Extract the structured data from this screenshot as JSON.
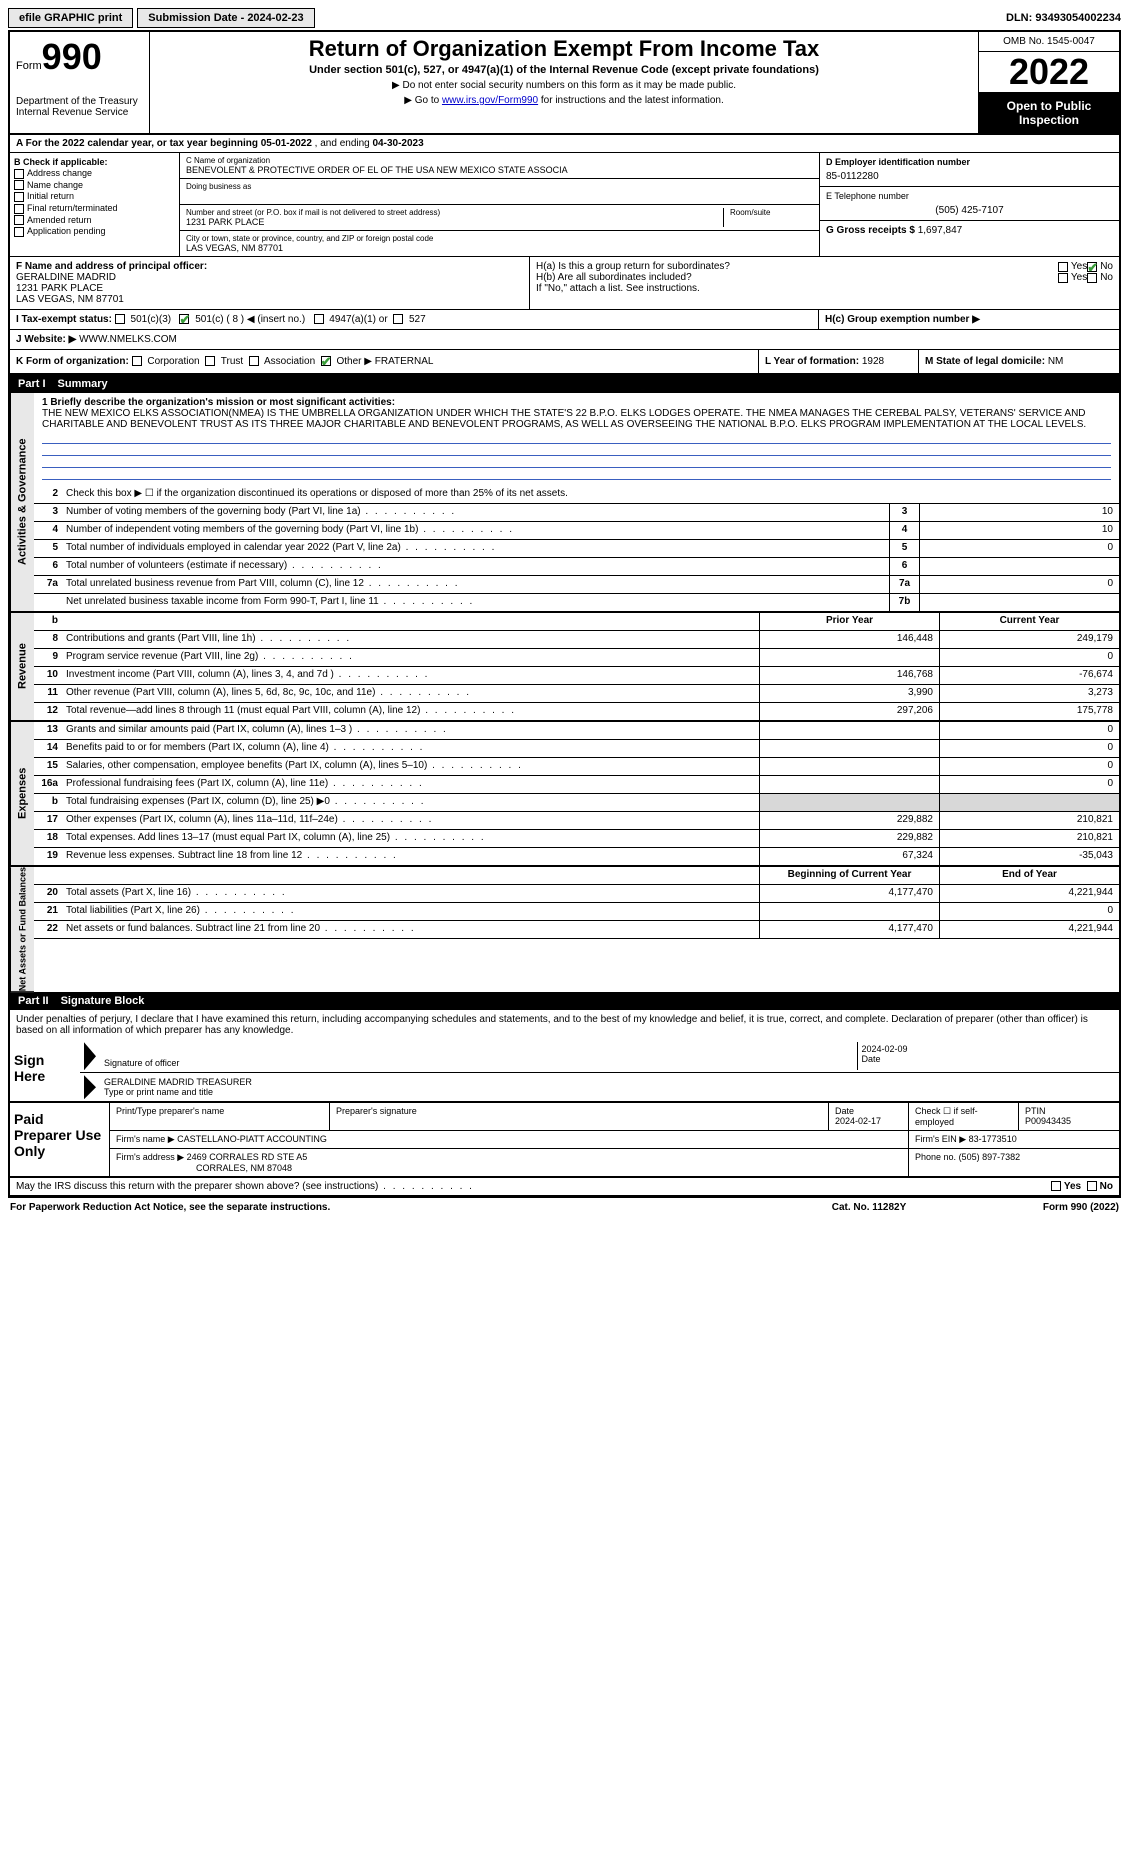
{
  "topbar": {
    "efile": "efile GRAPHIC print",
    "submission": "Submission Date - 2024-02-23",
    "dln": "DLN: 93493054002234"
  },
  "header": {
    "form_label": "Form",
    "form_num": "990",
    "dept": "Department of the Treasury",
    "irs": "Internal Revenue Service",
    "title": "Return of Organization Exempt From Income Tax",
    "subtitle": "Under section 501(c), 527, or 4947(a)(1) of the Internal Revenue Code (except private foundations)",
    "note1": "▶ Do not enter social security numbers on this form as it may be made public.",
    "note2_pre": "▶ Go to ",
    "note2_link": "www.irs.gov/Form990",
    "note2_post": " for instructions and the latest information.",
    "omb": "OMB No. 1545-0047",
    "year": "2022",
    "open": "Open to Public Inspection"
  },
  "rowA": {
    "text_pre": "A For the 2022 calendar year, or tax year beginning ",
    "begin": "05-01-2022",
    "mid": " , and ending ",
    "end": "04-30-2023"
  },
  "colB": {
    "hdr": "B Check if applicable:",
    "items": [
      "Address change",
      "Name change",
      "Initial return",
      "Final return/terminated",
      "Amended return",
      "Application pending"
    ]
  },
  "colC": {
    "name_hdr": "C Name of organization",
    "name": "BENEVOLENT & PROTECTIVE ORDER OF EL OF THE USA NEW MEXICO STATE ASSOCIA",
    "dba_hdr": "Doing business as",
    "addr_hdr": "Number and street (or P.O. box if mail is not delivered to street address)",
    "addr": "1231 PARK PLACE",
    "room_hdr": "Room/suite",
    "city_hdr": "City or town, state or province, country, and ZIP or foreign postal code",
    "city": "LAS VEGAS, NM  87701"
  },
  "colD": {
    "ein_hdr": "D Employer identification number",
    "ein": "85-0112280",
    "tel_hdr": "E Telephone number",
    "tel": "(505) 425-7107",
    "gross_hdr": "G Gross receipts $",
    "gross": "1,697,847"
  },
  "rowF": {
    "hdr": "F  Name and address of principal officer:",
    "name": "GERALDINE MADRID",
    "addr1": "1231 PARK PLACE",
    "addr2": "LAS VEGAS, NM  87701"
  },
  "rowH": {
    "ha": "H(a)  Is this a group return for subordinates?",
    "hb": "H(b)  Are all subordinates included?",
    "hb_note": "If \"No,\" attach a list. See instructions.",
    "hc": "H(c)  Group exemption number ▶",
    "yes": "Yes",
    "no": "No"
  },
  "rowI": {
    "label": "I  Tax-exempt status:",
    "c3": "501(c)(3)",
    "c": "501(c) ( 8 ) ◀ (insert no.)",
    "a1": "4947(a)(1) or",
    "s527": "527"
  },
  "rowJ": {
    "label": "J  Website: ▶",
    "val": "WWW.NMELKS.COM"
  },
  "rowK": {
    "label": "K Form of organization:",
    "corp": "Corporation",
    "trust": "Trust",
    "assoc": "Association",
    "other": "Other ▶",
    "other_val": "FRATERNAL",
    "year_lbl": "L Year of formation:",
    "year_val": "1928",
    "state_lbl": "M State of legal domicile:",
    "state_val": "NM"
  },
  "part1": {
    "label": "Part I",
    "title": "Summary"
  },
  "mission": {
    "q": "1 Briefly describe the organization's mission or most significant activities:",
    "text": "THE NEW MEXICO ELKS ASSOCIATION(NMEA) IS THE UMBRELLA ORGANIZATION UNDER WHICH THE STATE'S 22 B.P.O. ELKS LODGES OPERATE. THE NMEA MANAGES THE CEREBAL PALSY, VETERANS' SERVICE AND CHARITABLE AND BENEVOLENT TRUST AS ITS THREE MAJOR CHARITABLE AND BENEVOLENT PROGRAMS, AS WELL AS OVERSEEING THE NATIONAL B.P.O. ELKS PROGRAM IMPLEMENTATION AT THE LOCAL LEVELS."
  },
  "gov": {
    "side": "Activities & Governance",
    "l2": "Check this box ▶ ☐  if the organization discontinued its operations or disposed of more than 25% of its net assets.",
    "lines": [
      {
        "n": "3",
        "d": "Number of voting members of the governing body (Part VI, line 1a)",
        "nc": "3",
        "v": "10"
      },
      {
        "n": "4",
        "d": "Number of independent voting members of the governing body (Part VI, line 1b)",
        "nc": "4",
        "v": "10"
      },
      {
        "n": "5",
        "d": "Total number of individuals employed in calendar year 2022 (Part V, line 2a)",
        "nc": "5",
        "v": "0"
      },
      {
        "n": "6",
        "d": "Total number of volunteers (estimate if necessary)",
        "nc": "6",
        "v": ""
      },
      {
        "n": "7a",
        "d": "Total unrelated business revenue from Part VIII, column (C), line 12",
        "nc": "7a",
        "v": "0"
      },
      {
        "n": "",
        "d": "Net unrelated business taxable income from Form 990-T, Part I, line 11",
        "nc": "7b",
        "v": ""
      }
    ]
  },
  "rev": {
    "side": "Revenue",
    "hdr_b": "b",
    "hdr_prior": "Prior Year",
    "hdr_curr": "Current Year",
    "lines": [
      {
        "n": "8",
        "d": "Contributions and grants (Part VIII, line 1h)",
        "p": "146,448",
        "c": "249,179"
      },
      {
        "n": "9",
        "d": "Program service revenue (Part VIII, line 2g)",
        "p": "",
        "c": "0"
      },
      {
        "n": "10",
        "d": "Investment income (Part VIII, column (A), lines 3, 4, and 7d )",
        "p": "146,768",
        "c": "-76,674"
      },
      {
        "n": "11",
        "d": "Other revenue (Part VIII, column (A), lines 5, 6d, 8c, 9c, 10c, and 11e)",
        "p": "3,990",
        "c": "3,273"
      },
      {
        "n": "12",
        "d": "Total revenue—add lines 8 through 11 (must equal Part VIII, column (A), line 12)",
        "p": "297,206",
        "c": "175,778"
      }
    ]
  },
  "exp": {
    "side": "Expenses",
    "lines": [
      {
        "n": "13",
        "d": "Grants and similar amounts paid (Part IX, column (A), lines 1–3 )",
        "p": "",
        "c": "0"
      },
      {
        "n": "14",
        "d": "Benefits paid to or for members (Part IX, column (A), line 4)",
        "p": "",
        "c": "0"
      },
      {
        "n": "15",
        "d": "Salaries, other compensation, employee benefits (Part IX, column (A), lines 5–10)",
        "p": "",
        "c": "0"
      },
      {
        "n": "16a",
        "d": "Professional fundraising fees (Part IX, column (A), line 11e)",
        "p": "",
        "c": "0"
      },
      {
        "n": "b",
        "d": "Total fundraising expenses (Part IX, column (D), line 25) ▶0",
        "p": "shaded",
        "c": "shaded"
      },
      {
        "n": "17",
        "d": "Other expenses (Part IX, column (A), lines 11a–11d, 11f–24e)",
        "p": "229,882",
        "c": "210,821"
      },
      {
        "n": "18",
        "d": "Total expenses. Add lines 13–17 (must equal Part IX, column (A), line 25)",
        "p": "229,882",
        "c": "210,821"
      },
      {
        "n": "19",
        "d": "Revenue less expenses. Subtract line 18 from line 12",
        "p": "67,324",
        "c": "-35,043"
      }
    ]
  },
  "net": {
    "side": "Net Assets or Fund Balances",
    "hdr_begin": "Beginning of Current Year",
    "hdr_end": "End of Year",
    "lines": [
      {
        "n": "20",
        "d": "Total assets (Part X, line 16)",
        "p": "4,177,470",
        "c": "4,221,944"
      },
      {
        "n": "21",
        "d": "Total liabilities (Part X, line 26)",
        "p": "",
        "c": "0"
      },
      {
        "n": "22",
        "d": "Net assets or fund balances. Subtract line 21 from line 20",
        "p": "4,177,470",
        "c": "4,221,944"
      }
    ]
  },
  "part2": {
    "label": "Part II",
    "title": "Signature Block"
  },
  "sig": {
    "decl": "Under penalties of perjury, I declare that I have examined this return, including accompanying schedules and statements, and to the best of my knowledge and belief, it is true, correct, and complete. Declaration of preparer (other than officer) is based on all information of which preparer has any knowledge.",
    "sign_here": "Sign Here",
    "sig_officer": "Signature of officer",
    "date": "2024-02-09",
    "date_lbl": "Date",
    "name": "GERALDINE MADRID TREASURER",
    "name_lbl": "Type or print name and title"
  },
  "prep": {
    "label": "Paid Preparer Use Only",
    "h_name": "Print/Type preparer's name",
    "h_sig": "Preparer's signature",
    "h_date": "Date",
    "date": "2024-02-17",
    "h_check": "Check ☐ if self-employed",
    "h_ptin": "PTIN",
    "ptin": "P00943435",
    "firm_lbl": "Firm's name    ▶",
    "firm": "CASTELLANO-PIATT ACCOUNTING",
    "ein_lbl": "Firm's EIN ▶",
    "ein": "83-1773510",
    "addr_lbl": "Firm's address ▶",
    "addr1": "2469 CORRALES RD STE A5",
    "addr2": "CORRALES, NM  87048",
    "phone_lbl": "Phone no.",
    "phone": "(505) 897-7382"
  },
  "footer": {
    "discuss": "May the IRS discuss this return with the preparer shown above? (see instructions)",
    "yes": "Yes",
    "no": "No",
    "pra": "For Paperwork Reduction Act Notice, see the separate instructions.",
    "cat": "Cat. No. 11282Y",
    "form": "Form 990 (2022)"
  },
  "colors": {
    "link": "#0000cc",
    "shade": "#d8d8d8",
    "sidebar": "#e8e8e8",
    "check": "#3a9d3a",
    "rule": "#3a5fbf"
  }
}
